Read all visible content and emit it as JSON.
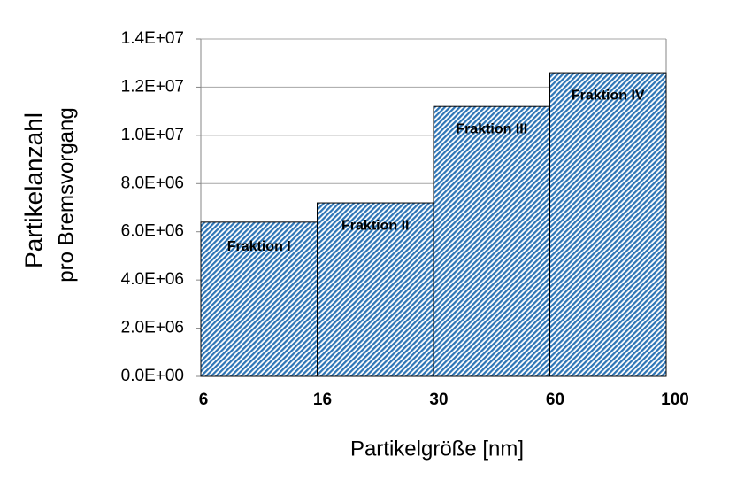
{
  "chart_data": {
    "type": "bar",
    "categories": [
      "Fraktion I",
      "Fraktion II",
      "Fraktion III",
      "Fraktion IV"
    ],
    "values": [
      6400000,
      7200000,
      11200000,
      12600000
    ],
    "x_edges": [
      6,
      16,
      30,
      60,
      100
    ],
    "color": "#2e75b6",
    "xlabel": "Partikelgröße [nm]",
    "ylabel": [
      "Partikelanzahl",
      "pro Bremsvorgang"
    ],
    "ylim": [
      0,
      14000000
    ],
    "yticks": [
      {
        "value": 0,
        "label": "0.0E+00"
      },
      {
        "value": 2000000,
        "label": "2.0E+06"
      },
      {
        "value": 4000000,
        "label": "4.0E+06"
      },
      {
        "value": 6000000,
        "label": "6.0E+06"
      },
      {
        "value": 8000000,
        "label": "8.0E+06"
      },
      {
        "value": 10000000,
        "label": "1.0E+07"
      },
      {
        "value": 12000000,
        "label": "1.2E+07"
      },
      {
        "value": 14000000,
        "label": "1.4E+07"
      }
    ],
    "grid": true
  }
}
